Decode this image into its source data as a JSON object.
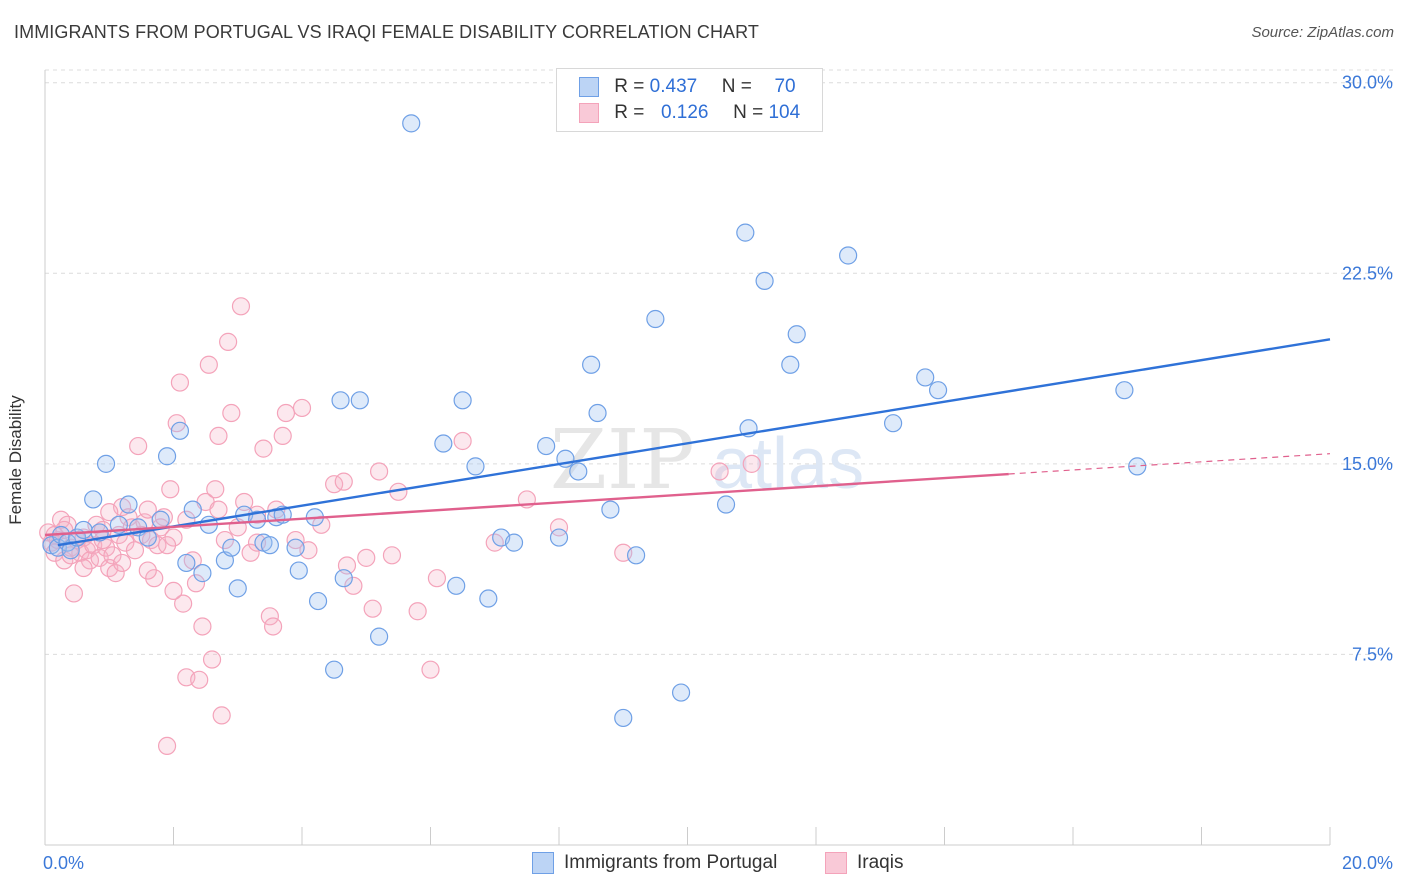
{
  "title": "IMMIGRANTS FROM PORTUGAL VS IRAQI FEMALE DISABILITY CORRELATION CHART",
  "source": "Source: ZipAtlas.com",
  "watermark": {
    "zip": "ZIP",
    "atlas": "atlas"
  },
  "legend_top": {
    "rows": [
      {
        "r_label": "R =",
        "r_value": "0.437",
        "n_label": "N =",
        "n_value": "70",
        "color": "#a9c7f2"
      },
      {
        "r_label": "R =",
        "r_value": "0.126",
        "n_label": "N =",
        "n_value": "104",
        "color": "#f7b8cb"
      }
    ]
  },
  "chart_data": {
    "type": "scatter",
    "title": "IMMIGRANTS FROM PORTUGAL VS IRAQI FEMALE DISABILITY CORRELATION CHART",
    "xlabel": "",
    "ylabel": "Female Disability",
    "xlim": [
      0,
      20
    ],
    "ylim": [
      0,
      30.5
    ],
    "x_tick_labels": [
      "0.0%",
      "20.0%"
    ],
    "y_ticks": [
      7.5,
      15.0,
      22.5,
      30.0
    ],
    "y_tick_labels": [
      "7.5%",
      "15.0%",
      "22.5%",
      "30.0%"
    ],
    "grid": true,
    "legend_position": "bottom",
    "series": [
      {
        "name": "Immigrants from Portugal",
        "color": "#6fa0e6",
        "trend": {
          "x": [
            0.2,
            20.0
          ],
          "y": [
            11.8,
            19.9
          ],
          "color": "#2f72d8"
        },
        "points": [
          [
            0.1,
            11.8
          ],
          [
            0.2,
            11.7
          ],
          [
            0.25,
            12.2
          ],
          [
            0.35,
            11.9
          ],
          [
            0.4,
            11.6
          ],
          [
            0.5,
            12.1
          ],
          [
            0.6,
            12.4
          ],
          [
            0.75,
            13.6
          ],
          [
            0.85,
            12.3
          ],
          [
            0.95,
            15.0
          ],
          [
            1.15,
            12.6
          ],
          [
            1.3,
            13.4
          ],
          [
            1.45,
            12.5
          ],
          [
            1.6,
            12.1
          ],
          [
            1.8,
            12.8
          ],
          [
            1.9,
            15.3
          ],
          [
            2.1,
            16.3
          ],
          [
            2.2,
            11.1
          ],
          [
            2.3,
            13.2
          ],
          [
            2.45,
            10.7
          ],
          [
            2.55,
            12.6
          ],
          [
            2.8,
            11.2
          ],
          [
            2.9,
            11.7
          ],
          [
            3.0,
            10.1
          ],
          [
            3.1,
            13.0
          ],
          [
            3.3,
            12.8
          ],
          [
            3.4,
            11.9
          ],
          [
            3.5,
            11.8
          ],
          [
            3.6,
            12.9
          ],
          [
            3.7,
            13.0
          ],
          [
            3.9,
            11.7
          ],
          [
            3.95,
            10.8
          ],
          [
            4.2,
            12.9
          ],
          [
            4.25,
            9.6
          ],
          [
            4.5,
            6.9
          ],
          [
            4.6,
            17.5
          ],
          [
            4.65,
            10.5
          ],
          [
            4.9,
            17.5
          ],
          [
            5.2,
            8.2
          ],
          [
            5.7,
            28.4
          ],
          [
            6.2,
            15.8
          ],
          [
            6.4,
            10.2
          ],
          [
            6.5,
            17.5
          ],
          [
            6.7,
            14.9
          ],
          [
            6.9,
            9.7
          ],
          [
            7.1,
            12.1
          ],
          [
            7.3,
            11.9
          ],
          [
            7.8,
            15.7
          ],
          [
            8.0,
            12.1
          ],
          [
            8.1,
            15.2
          ],
          [
            8.3,
            14.7
          ],
          [
            8.5,
            18.9
          ],
          [
            8.6,
            17.0
          ],
          [
            8.8,
            13.2
          ],
          [
            9.0,
            5.0
          ],
          [
            9.2,
            11.4
          ],
          [
            9.5,
            20.7
          ],
          [
            9.9,
            6.0
          ],
          [
            10.6,
            13.4
          ],
          [
            10.9,
            24.1
          ],
          [
            10.95,
            16.4
          ],
          [
            11.2,
            22.2
          ],
          [
            11.6,
            18.9
          ],
          [
            11.7,
            20.1
          ],
          [
            12.5,
            23.2
          ],
          [
            13.2,
            16.6
          ],
          [
            13.7,
            18.4
          ],
          [
            13.9,
            17.9
          ],
          [
            16.8,
            17.9
          ],
          [
            17.0,
            14.9
          ]
        ]
      },
      {
        "name": "Iraqis",
        "color": "#f4a3ba",
        "trend": {
          "x": [
            0.0,
            15.0
          ],
          "y": [
            12.2,
            14.6
          ],
          "color": "#e0608d"
        },
        "trend_ext": {
          "x": [
            15.0,
            20.0
          ],
          "y": [
            14.6,
            15.4
          ]
        },
        "points": [
          [
            0.05,
            12.3
          ],
          [
            0.1,
            11.9
          ],
          [
            0.15,
            11.5
          ],
          [
            0.2,
            12.0
          ],
          [
            0.25,
            12.8
          ],
          [
            0.3,
            11.2
          ],
          [
            0.35,
            12.6
          ],
          [
            0.4,
            11.7
          ],
          [
            0.45,
            9.9
          ],
          [
            0.5,
            12.0
          ],
          [
            0.55,
            11.5
          ],
          [
            0.6,
            12.1
          ],
          [
            0.65,
            11.6
          ],
          [
            0.7,
            11.2
          ],
          [
            0.75,
            11.8
          ],
          [
            0.8,
            12.6
          ],
          [
            0.85,
            11.3
          ],
          [
            0.9,
            12.4
          ],
          [
            0.95,
            11.7
          ],
          [
            1.0,
            10.9
          ],
          [
            1.05,
            11.4
          ],
          [
            1.1,
            10.7
          ],
          [
            1.15,
            12.2
          ],
          [
            1.2,
            13.3
          ],
          [
            1.25,
            11.9
          ],
          [
            1.3,
            12.9
          ],
          [
            1.35,
            12.5
          ],
          [
            1.4,
            11.6
          ],
          [
            1.45,
            15.7
          ],
          [
            1.5,
            12.2
          ],
          [
            1.55,
            12.7
          ],
          [
            1.6,
            13.2
          ],
          [
            1.65,
            12.0
          ],
          [
            1.7,
            10.5
          ],
          [
            1.75,
            11.8
          ],
          [
            1.8,
            12.5
          ],
          [
            1.85,
            12.9
          ],
          [
            1.9,
            3.9
          ],
          [
            1.95,
            14.0
          ],
          [
            2.0,
            12.1
          ],
          [
            2.05,
            16.6
          ],
          [
            2.1,
            18.2
          ],
          [
            2.15,
            9.5
          ],
          [
            2.2,
            6.6
          ],
          [
            2.3,
            11.2
          ],
          [
            2.35,
            10.3
          ],
          [
            2.4,
            6.5
          ],
          [
            2.45,
            8.6
          ],
          [
            2.5,
            13.5
          ],
          [
            2.55,
            18.9
          ],
          [
            2.6,
            7.3
          ],
          [
            2.65,
            14.0
          ],
          [
            2.7,
            16.1
          ],
          [
            2.75,
            5.1
          ],
          [
            2.8,
            12.0
          ],
          [
            2.85,
            19.8
          ],
          [
            2.9,
            17.0
          ],
          [
            3.0,
            12.5
          ],
          [
            3.05,
            21.2
          ],
          [
            3.1,
            13.5
          ],
          [
            3.2,
            11.5
          ],
          [
            3.3,
            11.9
          ],
          [
            3.4,
            15.6
          ],
          [
            3.5,
            9.0
          ],
          [
            3.55,
            8.6
          ],
          [
            3.6,
            13.2
          ],
          [
            3.7,
            16.1
          ],
          [
            3.75,
            17.0
          ],
          [
            3.9,
            12.0
          ],
          [
            4.0,
            17.2
          ],
          [
            4.1,
            11.6
          ],
          [
            4.3,
            12.6
          ],
          [
            4.5,
            14.2
          ],
          [
            4.65,
            14.3
          ],
          [
            4.7,
            11.0
          ],
          [
            4.8,
            10.2
          ],
          [
            5.0,
            11.3
          ],
          [
            5.1,
            9.3
          ],
          [
            5.2,
            14.7
          ],
          [
            5.4,
            11.4
          ],
          [
            5.5,
            13.9
          ],
          [
            5.8,
            9.2
          ],
          [
            6.0,
            6.9
          ],
          [
            6.1,
            10.5
          ],
          [
            6.5,
            15.9
          ],
          [
            7.0,
            11.9
          ],
          [
            7.5,
            13.6
          ],
          [
            8.0,
            12.5
          ],
          [
            9.0,
            11.5
          ],
          [
            10.5,
            14.7
          ],
          [
            11.0,
            15.0
          ],
          [
            1.9,
            11.8
          ],
          [
            0.3,
            12.4
          ],
          [
            1.0,
            13.1
          ],
          [
            2.2,
            12.8
          ],
          [
            3.3,
            13.0
          ],
          [
            0.6,
            10.9
          ],
          [
            1.2,
            11.1
          ],
          [
            0.9,
            12.0
          ],
          [
            2.0,
            10.0
          ],
          [
            0.15,
            12.2
          ],
          [
            0.4,
            11.4
          ],
          [
            1.6,
            10.8
          ],
          [
            2.7,
            13.2
          ]
        ]
      }
    ]
  }
}
